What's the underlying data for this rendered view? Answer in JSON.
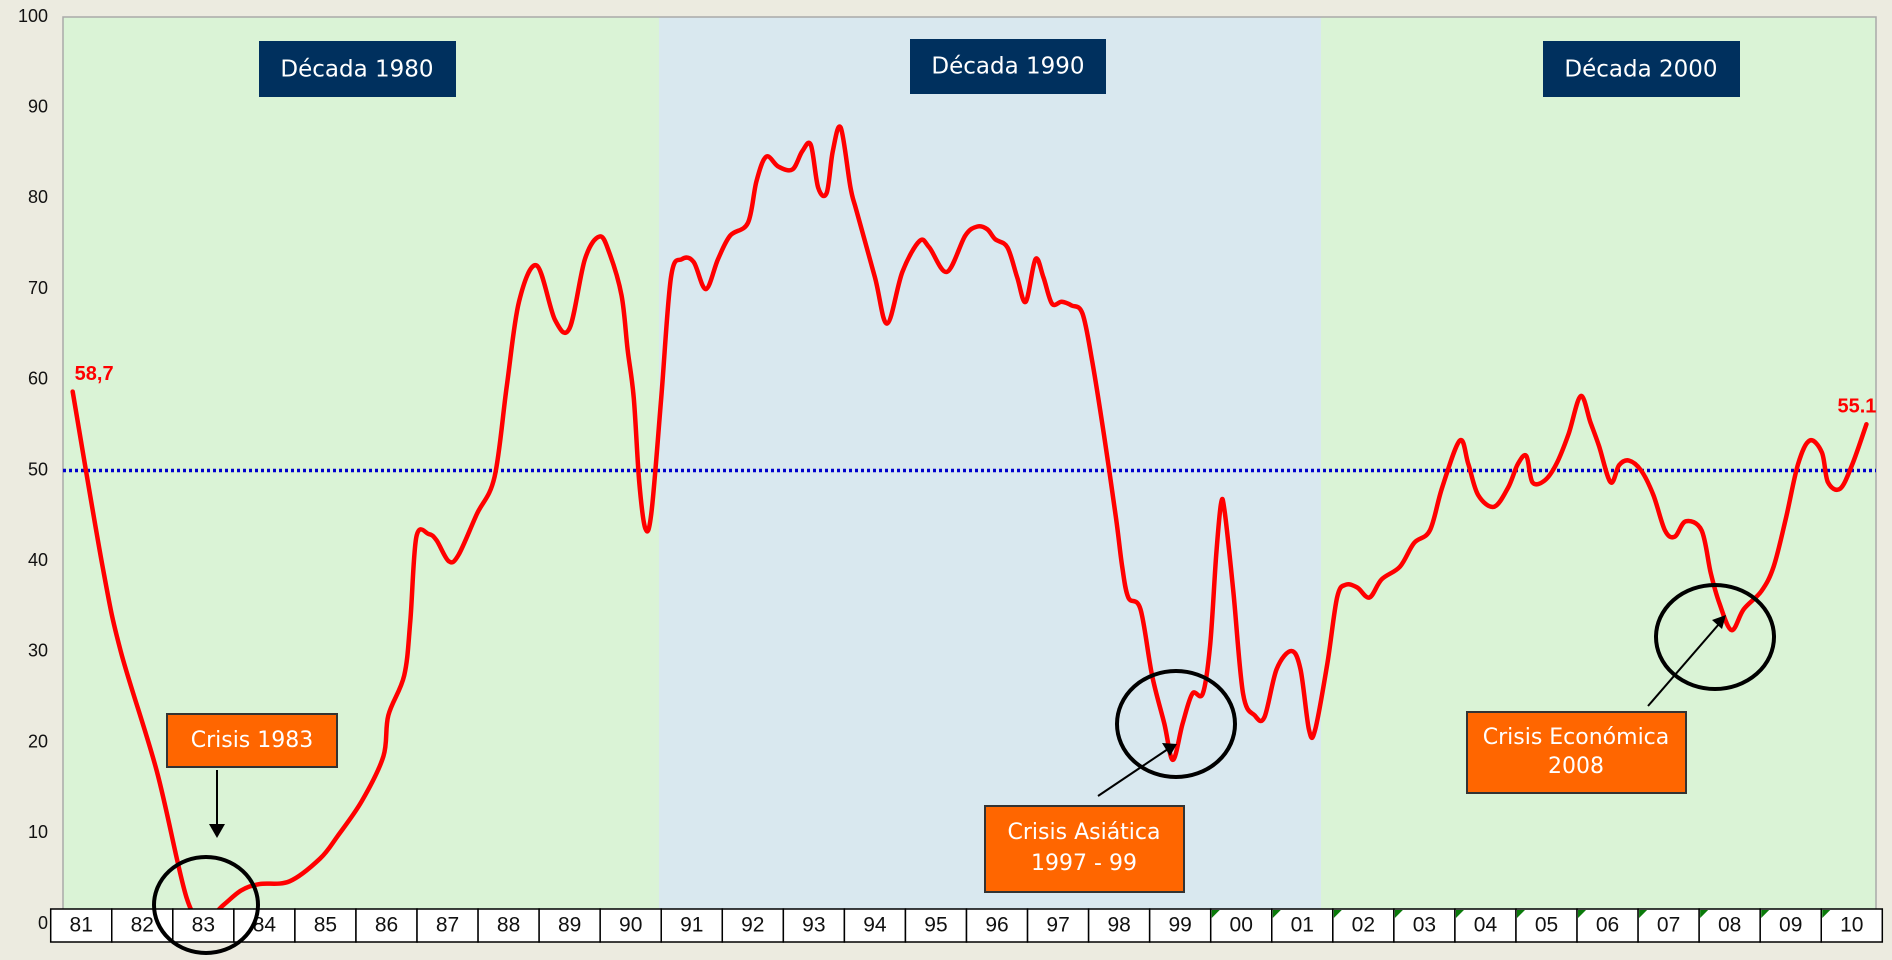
{
  "chart_data": {
    "type": "line",
    "color": "#ff0000",
    "x": [
      1981.36,
      1981.85,
      1982.15,
      1982.74,
      1983.23,
      1983.53,
      1983.83,
      1984.12,
      1984.42,
      1984.91,
      1985.41,
      1985.7,
      1986.1,
      1986.45,
      1986.53,
      1986.79,
      1986.89,
      1986.99,
      1987.19,
      1987.32,
      1987.52,
      1987.68,
      1987.98,
      1988.27,
      1988.47,
      1988.67,
      1988.96,
      1989.26,
      1989.5,
      1989.75,
      1989.99,
      1990.15,
      1990.35,
      1990.45,
      1990.55,
      1990.64,
      1990.74,
      1990.84,
      1991.0,
      1991.16,
      1991.34,
      1991.53,
      1991.73,
      1991.93,
      1992.13,
      1992.42,
      1992.56,
      1992.72,
      1992.92,
      1993.15,
      1993.31,
      1993.45,
      1993.57,
      1993.71,
      1993.81,
      1993.94,
      1994.1,
      1994.2,
      1994.5,
      1994.7,
      1994.95,
      1995.23,
      1995.39,
      1995.68,
      1995.98,
      1996.18,
      1996.34,
      1996.47,
      1996.67,
      1996.83,
      1996.97,
      1997.13,
      1997.26,
      1997.4,
      1997.56,
      1997.72,
      1997.9,
      1998.06,
      1998.25,
      1998.45,
      1998.55,
      1998.65,
      1998.85,
      1999.04,
      1999.24,
      1999.38,
      1999.54,
      1999.7,
      1999.87,
      1999.99,
      2000.09,
      2000.17,
      2000.23,
      2000.37,
      2000.53,
      2000.72,
      2000.88,
      2001.08,
      2001.32,
      2001.47,
      2001.61,
      2001.71,
      2001.91,
      2002.07,
      2002.21,
      2002.4,
      2002.6,
      2002.8,
      2003.1,
      2003.33,
      2003.59,
      2003.79,
      2004.08,
      2004.22,
      2004.38,
      2004.64,
      2004.87,
      2005.03,
      2005.17,
      2005.27,
      2005.47,
      2005.66,
      2005.86,
      2006.06,
      2006.22,
      2006.36,
      2006.55,
      2006.69,
      2006.85,
      2007.05,
      2007.25,
      2007.44,
      2007.6,
      2007.78,
      2008.04,
      2008.19,
      2008.33,
      2008.53,
      2008.73,
      2009.02,
      2009.22,
      2009.42,
      2009.62,
      2009.81,
      2010.01,
      2010.11,
      2010.31,
      2010.51,
      2010.74
    ],
    "values": [
      58.7,
      39.4,
      30,
      16.8,
      2.8,
      0.5,
      2.1,
      3.7,
      4.4,
      4.7,
      7.2,
      9.7,
      13.6,
      18.5,
      23,
      27.4,
      33.4,
      42.7,
      43,
      42.3,
      40,
      40.7,
      45.2,
      49.3,
      59.3,
      68.6,
      72.6,
      66.6,
      65.7,
      73.3,
      75.8,
      74,
      69.3,
      63.3,
      58,
      48.7,
      43.6,
      45.4,
      58,
      71.3,
      73.3,
      73,
      70,
      73.3,
      75.9,
      77.3,
      81.9,
      84.6,
      83.5,
      83.2,
      85.2,
      85.9,
      81.2,
      80.6,
      85.2,
      87.8,
      81.2,
      78.6,
      71.3,
      66.2,
      71.9,
      75.3,
      74.6,
      71.9,
      75.9,
      76.9,
      76.6,
      75.5,
      74.6,
      71.3,
      68.6,
      73.3,
      71.3,
      68.4,
      68.6,
      68.2,
      67.3,
      62,
      54,
      44.7,
      39.4,
      36,
      34.7,
      27.4,
      22.1,
      18.1,
      22.1,
      25.4,
      25.4,
      30.7,
      40.7,
      46.4,
      45.4,
      36.7,
      25.4,
      23,
      22.8,
      28.1,
      30.1,
      28.1,
      21.4,
      21.4,
      28.7,
      36,
      37.4,
      37.1,
      36,
      38,
      39.4,
      42,
      43.4,
      48.1,
      53.3,
      50.7,
      47.3,
      46,
      48.1,
      50.7,
      51.6,
      48.7,
      48.9,
      50.7,
      54,
      58.2,
      55.3,
      52.7,
      48.7,
      50.6,
      51.1,
      50,
      47.3,
      43.4,
      42.7,
      44.4,
      43.4,
      38.7,
      35.4,
      32.4,
      34.7,
      36.7,
      39.4,
      44.7,
      50.7,
      53.3,
      52,
      48.7,
      48,
      50.7,
      55.1
    ],
    "value_labels": [
      "58,7",
      null,
      null,
      null,
      null,
      null,
      null,
      null,
      null,
      null,
      null,
      null,
      null,
      null,
      null,
      null,
      null,
      null,
      null,
      null,
      null,
      null,
      null,
      null,
      null,
      null,
      null,
      null,
      null,
      null,
      null,
      null,
      null,
      null,
      null,
      null,
      null,
      null,
      null,
      null,
      null,
      null,
      null,
      null,
      null,
      null,
      null,
      null,
      null,
      null,
      null,
      null,
      null,
      null,
      null,
      null,
      null,
      null,
      null,
      null,
      null,
      null,
      null,
      null,
      null,
      null,
      null,
      null,
      null,
      null,
      null,
      null,
      null,
      null,
      null,
      null,
      null,
      null,
      null,
      null,
      null,
      null,
      null,
      null,
      null,
      null,
      null,
      null,
      null,
      null,
      null,
      null,
      null,
      null,
      null,
      null,
      null,
      null,
      null,
      null,
      null,
      null,
      null,
      null,
      null,
      null,
      null,
      null,
      null,
      null,
      null,
      null,
      null,
      null,
      null,
      null,
      null,
      null,
      null,
      null,
      null,
      null,
      null,
      null,
      null,
      null,
      null,
      null,
      null,
      null,
      null,
      null,
      null,
      null,
      null,
      null,
      null,
      null,
      null,
      null,
      null,
      null,
      null,
      null,
      null,
      null,
      null,
      null,
      "55.1"
    ],
    "xlim": [
      1981,
      2011
    ],
    "xticks": [
      {
        "value": 1981.5,
        "label": "81"
      },
      {
        "value": 1982.5,
        "label": "82"
      },
      {
        "value": 1983.5,
        "label": "83"
      },
      {
        "value": 1984.5,
        "label": "84"
      },
      {
        "value": 1985.5,
        "label": "85"
      },
      {
        "value": 1986.5,
        "label": "86"
      },
      {
        "value": 1987.5,
        "label": "87"
      },
      {
        "value": 1988.5,
        "label": "88"
      },
      {
        "value": 1989.5,
        "label": "89"
      },
      {
        "value": 1990.5,
        "label": "90"
      },
      {
        "value": 1991.5,
        "label": "91"
      },
      {
        "value": 1992.5,
        "label": "92"
      },
      {
        "value": 1993.5,
        "label": "93"
      },
      {
        "value": 1994.5,
        "label": "94"
      },
      {
        "value": 1995.5,
        "label": "95"
      },
      {
        "value": 1996.5,
        "label": "96"
      },
      {
        "value": 1997.5,
        "label": "97"
      },
      {
        "value": 1998.5,
        "label": "98"
      },
      {
        "value": 1999.5,
        "label": "99"
      },
      {
        "value": 2000.5,
        "label": "00"
      },
      {
        "value": 2001.5,
        "label": "01"
      },
      {
        "value": 2002.5,
        "label": "02"
      },
      {
        "value": 2003.5,
        "label": "03"
      },
      {
        "value": 2004.5,
        "label": "04"
      },
      {
        "value": 2005.5,
        "label": "05"
      },
      {
        "value": 2006.5,
        "label": "06"
      },
      {
        "value": 2007.5,
        "label": "07"
      },
      {
        "value": 2008.5,
        "label": "08"
      },
      {
        "value": 2009.5,
        "label": "09"
      },
      {
        "value": 2010.5,
        "label": "10"
      }
    ],
    "ylim": [
      0,
      100
    ],
    "yticks": [
      0,
      10,
      20,
      30,
      40,
      50,
      60,
      70,
      80,
      90,
      100
    ],
    "grid": false,
    "reference_line": {
      "value": 50,
      "color": "#0000cc"
    },
    "decade_labels": [
      "Década 1980",
      "Década 1990",
      "Década 2000"
    ],
    "callouts": [
      {
        "lines": [
          "Crisis 1983"
        ]
      },
      {
        "lines": [
          "Crisis Asiática",
          "1997 - 99"
        ]
      },
      {
        "lines": [
          "Crisis Económica",
          "2008"
        ]
      }
    ]
  }
}
